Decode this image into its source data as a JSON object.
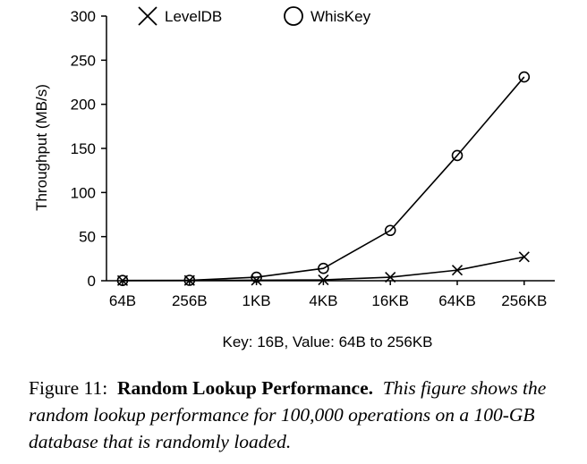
{
  "chart_data": {
    "type": "line",
    "categories": [
      "64B",
      "256B",
      "1KB",
      "4KB",
      "16KB",
      "64KB",
      "256KB"
    ],
    "series": [
      {
        "name": "LevelDB",
        "marker": "x",
        "values": [
          0.2,
          0.3,
          0.6,
          1,
          4,
          12,
          27
        ]
      },
      {
        "name": "WhisKey",
        "marker": "circle",
        "values": [
          0.3,
          0.5,
          4,
          14,
          57,
          142,
          231
        ]
      }
    ],
    "xlabel": "Key: 16B, Value: 64B to 256KB",
    "ylabel": "Throughput (MB/s)",
    "ylim": [
      0,
      300
    ],
    "yticks": [
      0,
      50,
      100,
      150,
      200,
      250,
      300
    ],
    "grid": false,
    "legend_position": "top"
  },
  "caption": {
    "prefix": "Figure 11:",
    "title": "Random Lookup Performance.",
    "text": "This figure shows the random lookup performance for 100,000 operations on a 100-GB database that is randomly loaded."
  }
}
